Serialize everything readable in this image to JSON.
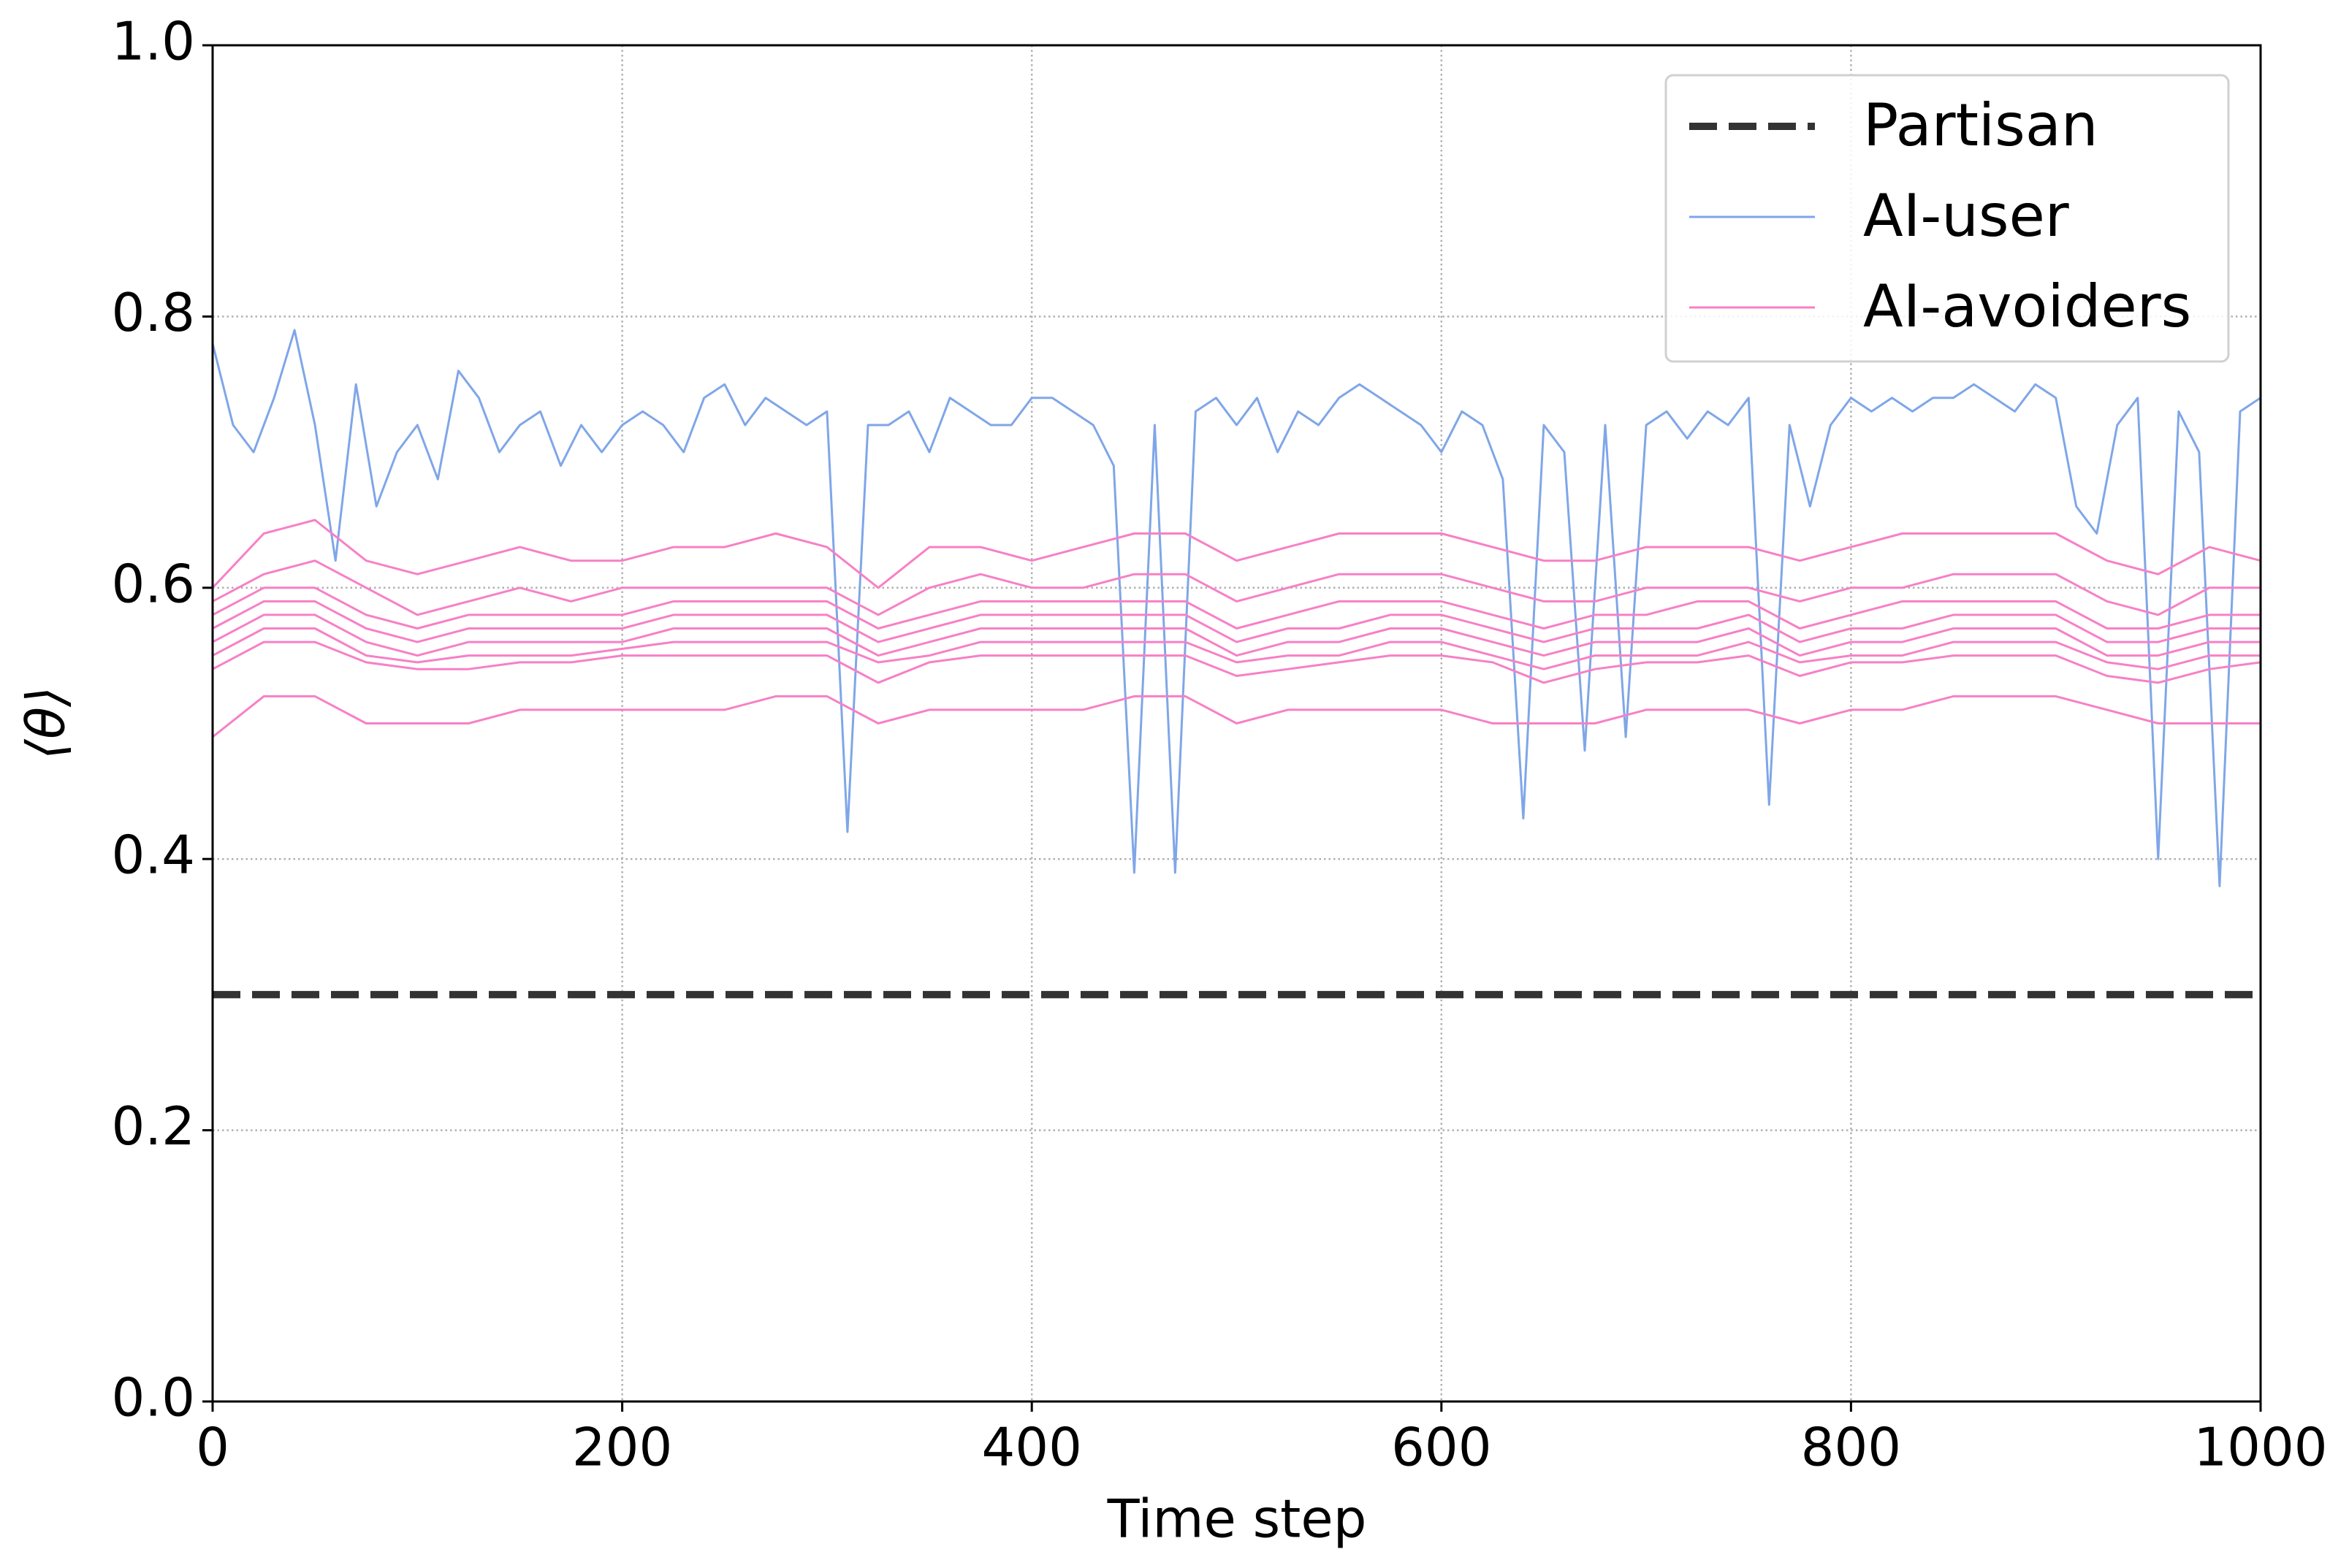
{
  "chart_data": {
    "type": "line",
    "xlabel": "Time step",
    "ylabel": "⟨θ⟩",
    "xlim": [
      0,
      1000
    ],
    "xticks": [
      0,
      200,
      400,
      600,
      800,
      1000
    ],
    "ylim": [
      0,
      1
    ],
    "yticks": [
      {
        "value": 0,
        "label": "0.0"
      },
      0.2,
      0.4,
      0.6,
      0.8,
      {
        "value": 1,
        "label": "1.0"
      }
    ],
    "grid": true,
    "legend": "upper right",
    "series": [
      {
        "name": "Partisan",
        "color": "#333333",
        "style": "dashed",
        "x": [
          0,
          1000
        ],
        "values": [
          0.3,
          0.3
        ]
      },
      {
        "name": "AI-user",
        "color": "#7fa6e8",
        "style": "solid",
        "x": [
          0,
          10,
          20,
          30,
          40,
          50,
          60,
          70,
          80,
          90,
          100,
          110,
          120,
          130,
          140,
          150,
          160,
          170,
          180,
          190,
          200,
          210,
          220,
          230,
          240,
          250,
          260,
          270,
          280,
          290,
          300,
          310,
          320,
          330,
          340,
          350,
          360,
          370,
          380,
          390,
          400,
          410,
          420,
          430,
          440,
          450,
          460,
          470,
          480,
          490,
          500,
          510,
          520,
          530,
          540,
          550,
          560,
          570,
          580,
          590,
          600,
          610,
          620,
          630,
          640,
          650,
          660,
          670,
          680,
          690,
          700,
          710,
          720,
          730,
          740,
          750,
          760,
          770,
          780,
          790,
          800,
          810,
          820,
          830,
          840,
          850,
          860,
          870,
          880,
          890,
          900,
          910,
          920,
          930,
          940,
          950,
          960,
          970,
          980,
          990,
          1000
        ],
        "values": [
          0.78,
          0.72,
          0.7,
          0.74,
          0.79,
          0.72,
          0.62,
          0.75,
          0.66,
          0.7,
          0.72,
          0.68,
          0.76,
          0.74,
          0.7,
          0.72,
          0.73,
          0.69,
          0.72,
          0.7,
          0.72,
          0.73,
          0.72,
          0.7,
          0.74,
          0.75,
          0.72,
          0.74,
          0.73,
          0.72,
          0.73,
          0.42,
          0.72,
          0.72,
          0.73,
          0.7,
          0.74,
          0.73,
          0.72,
          0.72,
          0.74,
          0.74,
          0.73,
          0.72,
          0.69,
          0.39,
          0.72,
          0.39,
          0.73,
          0.74,
          0.72,
          0.74,
          0.7,
          0.73,
          0.72,
          0.74,
          0.75,
          0.74,
          0.73,
          0.72,
          0.7,
          0.73,
          0.72,
          0.68,
          0.43,
          0.72,
          0.7,
          0.48,
          0.72,
          0.49,
          0.72,
          0.73,
          0.71,
          0.73,
          0.72,
          0.74,
          0.44,
          0.72,
          0.66,
          0.72,
          0.74,
          0.73,
          0.74,
          0.73,
          0.74,
          0.74,
          0.75,
          0.74,
          0.73,
          0.75,
          0.74,
          0.66,
          0.64,
          0.72,
          0.74,
          0.4,
          0.73,
          0.7,
          0.38,
          0.73,
          0.74
        ]
      },
      {
        "name": "AI-avoiders",
        "color": "#f780c6",
        "style": "solid",
        "x": [
          0,
          25,
          50,
          75,
          100,
          125,
          150,
          175,
          200,
          225,
          250,
          275,
          300,
          325,
          350,
          375,
          400,
          425,
          450,
          475,
          500,
          525,
          550,
          575,
          600,
          625,
          650,
          675,
          700,
          725,
          750,
          775,
          800,
          825,
          850,
          875,
          900,
          925,
          950,
          975,
          1000
        ],
        "values": [
          [
            0.6,
            0.64,
            0.65,
            0.62,
            0.61,
            0.62,
            0.63,
            0.62,
            0.62,
            0.63,
            0.63,
            0.64,
            0.63,
            0.6,
            0.63,
            0.63,
            0.62,
            0.63,
            0.64,
            0.64,
            0.62,
            0.63,
            0.64,
            0.64,
            0.64,
            0.63,
            0.62,
            0.62,
            0.63,
            0.63,
            0.63,
            0.62,
            0.63,
            0.64,
            0.64,
            0.64,
            0.64,
            0.62,
            0.61,
            0.63,
            0.62
          ],
          [
            0.59,
            0.61,
            0.62,
            0.6,
            0.58,
            0.59,
            0.6,
            0.59,
            0.6,
            0.6,
            0.6,
            0.6,
            0.6,
            0.58,
            0.6,
            0.61,
            0.6,
            0.6,
            0.61,
            0.61,
            0.59,
            0.6,
            0.61,
            0.61,
            0.61,
            0.6,
            0.59,
            0.59,
            0.6,
            0.6,
            0.6,
            0.59,
            0.6,
            0.6,
            0.61,
            0.61,
            0.61,
            0.59,
            0.58,
            0.6,
            0.6
          ],
          [
            0.58,
            0.6,
            0.6,
            0.58,
            0.57,
            0.58,
            0.58,
            0.58,
            0.58,
            0.59,
            0.59,
            0.59,
            0.59,
            0.57,
            0.58,
            0.59,
            0.59,
            0.59,
            0.59,
            0.59,
            0.57,
            0.58,
            0.59,
            0.59,
            0.59,
            0.58,
            0.57,
            0.58,
            0.58,
            0.59,
            0.59,
            0.57,
            0.58,
            0.59,
            0.59,
            0.59,
            0.59,
            0.57,
            0.57,
            0.58,
            0.58
          ],
          [
            0.57,
            0.59,
            0.59,
            0.57,
            0.56,
            0.57,
            0.57,
            0.57,
            0.57,
            0.58,
            0.58,
            0.58,
            0.58,
            0.56,
            0.57,
            0.58,
            0.58,
            0.58,
            0.58,
            0.58,
            0.56,
            0.57,
            0.57,
            0.58,
            0.58,
            0.57,
            0.56,
            0.57,
            0.57,
            0.57,
            0.58,
            0.56,
            0.57,
            0.57,
            0.58,
            0.58,
            0.58,
            0.56,
            0.56,
            0.57,
            0.57
          ],
          [
            0.56,
            0.58,
            0.58,
            0.56,
            0.55,
            0.56,
            0.56,
            0.56,
            0.56,
            0.57,
            0.57,
            0.57,
            0.57,
            0.55,
            0.56,
            0.57,
            0.57,
            0.57,
            0.57,
            0.57,
            0.55,
            0.56,
            0.56,
            0.57,
            0.57,
            0.56,
            0.55,
            0.56,
            0.56,
            0.56,
            0.57,
            0.55,
            0.56,
            0.56,
            0.57,
            0.57,
            0.57,
            0.55,
            0.55,
            0.56,
            0.56
          ],
          [
            0.55,
            0.57,
            0.57,
            0.55,
            0.545,
            0.55,
            0.55,
            0.55,
            0.555,
            0.56,
            0.56,
            0.56,
            0.56,
            0.545,
            0.55,
            0.56,
            0.56,
            0.56,
            0.56,
            0.56,
            0.545,
            0.55,
            0.55,
            0.56,
            0.56,
            0.55,
            0.54,
            0.55,
            0.55,
            0.55,
            0.56,
            0.545,
            0.55,
            0.55,
            0.56,
            0.56,
            0.56,
            0.545,
            0.54,
            0.55,
            0.55
          ],
          [
            0.54,
            0.56,
            0.56,
            0.545,
            0.54,
            0.54,
            0.545,
            0.545,
            0.55,
            0.55,
            0.55,
            0.55,
            0.55,
            0.53,
            0.545,
            0.55,
            0.55,
            0.55,
            0.55,
            0.55,
            0.535,
            0.54,
            0.545,
            0.55,
            0.55,
            0.545,
            0.53,
            0.54,
            0.545,
            0.545,
            0.55,
            0.535,
            0.545,
            0.545,
            0.55,
            0.55,
            0.55,
            0.535,
            0.53,
            0.54,
            0.545
          ],
          [
            0.49,
            0.52,
            0.52,
            0.5,
            0.5,
            0.5,
            0.51,
            0.51,
            0.51,
            0.51,
            0.51,
            0.52,
            0.52,
            0.5,
            0.51,
            0.51,
            0.51,
            0.51,
            0.52,
            0.52,
            0.5,
            0.51,
            0.51,
            0.51,
            0.51,
            0.5,
            0.5,
            0.5,
            0.51,
            0.51,
            0.51,
            0.5,
            0.51,
            0.51,
            0.52,
            0.52,
            0.52,
            0.51,
            0.5,
            0.5,
            0.5
          ]
        ]
      }
    ]
  }
}
